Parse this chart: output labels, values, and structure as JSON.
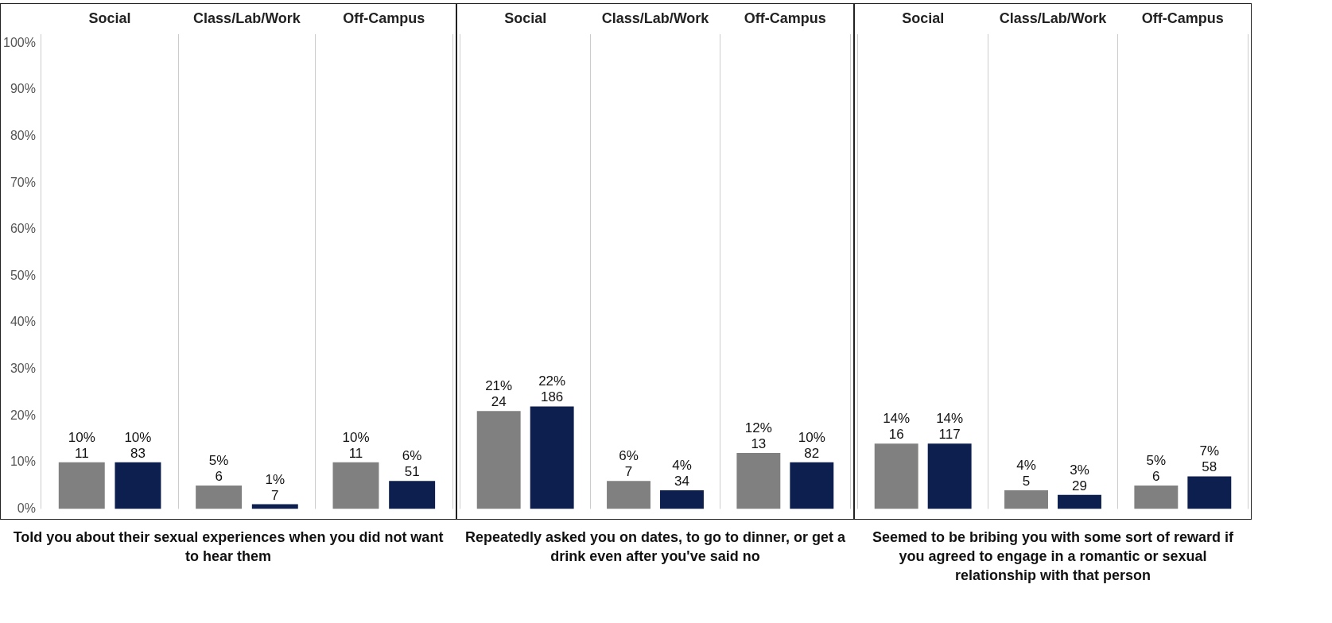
{
  "chart_data": [
    {
      "type": "bar",
      "title": "Told you about their sexual experiences when you did not want to hear them",
      "categories": [
        "Social",
        "Class/Lab/Work",
        "Off-Campus"
      ],
      "ylim": [
        0,
        102
      ],
      "yticks": [
        {
          "value": 0,
          "label": "0%"
        },
        {
          "value": 10,
          "label": "10%"
        },
        {
          "value": 20,
          "label": "20%"
        },
        {
          "value": 30,
          "label": "30%"
        },
        {
          "value": 40,
          "label": "40%"
        },
        {
          "value": 50,
          "label": "50%"
        },
        {
          "value": 60,
          "label": "60%"
        },
        {
          "value": 70,
          "label": "70%"
        },
        {
          "value": 80,
          "label": "80%"
        },
        {
          "value": 90,
          "label": "90%"
        },
        {
          "value": 100,
          "label": "100%"
        }
      ],
      "grid": false,
      "legend": false,
      "series": [
        {
          "color": "#808080",
          "values": [
            10,
            5,
            10
          ],
          "value_labels": [
            "10%\n11",
            "5%\n6",
            "10%\n11"
          ]
        },
        {
          "color": "#0c1f4f",
          "values": [
            10,
            1,
            6
          ],
          "value_labels": [
            "10%\n83",
            "1%\n7",
            "6%\n51"
          ]
        }
      ]
    },
    {
      "type": "bar",
      "title": "Repeatedly asked you on dates, to go to dinner, or get a drink even after you've said no",
      "categories": [
        "Social",
        "Class/Lab/Work",
        "Off-Campus"
      ],
      "ylim": [
        0,
        102
      ],
      "grid": false,
      "legend": false,
      "tick_labels": "x",
      "series": [
        {
          "color": "#808080",
          "values": [
            21,
            6,
            12
          ],
          "value_labels": [
            "21%\n24",
            "6%\n7",
            "12%\n13"
          ]
        },
        {
          "color": "#0c1f4f",
          "values": [
            22,
            4,
            10
          ],
          "value_labels": [
            "22%\n186",
            "4%\n34",
            "10%\n82"
          ]
        }
      ]
    },
    {
      "type": "bar",
      "title": "Seemed to be bribing you with some sort of reward if you agreed to engage in a romantic or sexual relationship with that person",
      "categories": [
        "Social",
        "Class/Lab/Work",
        "Off-Campus"
      ],
      "ylim": [
        0,
        102
      ],
      "grid": false,
      "legend": false,
      "tick_labels": "x",
      "series": [
        {
          "color": "#808080",
          "values": [
            14,
            4,
            5
          ],
          "value_labels": [
            "14%\n16",
            "4%\n5",
            "5%\n6"
          ]
        },
        {
          "color": "#0c1f4f",
          "values": [
            14,
            3,
            7
          ],
          "value_labels": [
            "14%\n117",
            "3%\n29",
            "7%\n58"
          ]
        }
      ]
    }
  ]
}
